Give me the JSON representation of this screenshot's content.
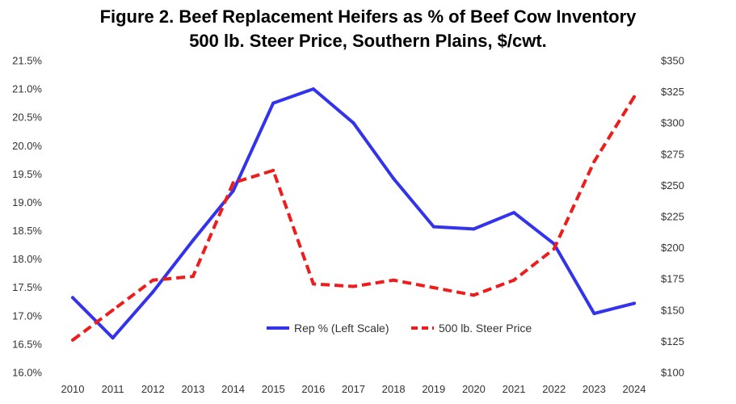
{
  "chart_data": {
    "type": "line",
    "title": "Figure 2. Beef Replacement Heifers as % of Beef Cow Inventory",
    "subtitle": "500 lb. Steer Price, Southern Plains, $/cwt.",
    "categories": [
      "2010",
      "2011",
      "2012",
      "2013",
      "2014",
      "2015",
      "2016",
      "2017",
      "2018",
      "2019",
      "2020",
      "2021",
      "2022",
      "2023",
      "2024"
    ],
    "series": [
      {
        "name": "Rep % (Left Scale)",
        "axis": "left",
        "color": "#3333ee",
        "dash": "solid",
        "values": [
          17.32,
          16.61,
          17.42,
          18.33,
          19.2,
          20.75,
          21.0,
          20.4,
          19.42,
          18.57,
          18.53,
          18.82,
          18.27,
          17.04,
          17.22
        ]
      },
      {
        "name": "500 lb. Steer Price",
        "axis": "right",
        "color": "#ee1c1c",
        "dash": "dashed",
        "values": [
          126,
          150,
          174,
          177,
          252,
          262,
          171,
          169,
          174,
          168,
          162,
          174,
          199,
          269,
          321
        ]
      }
    ],
    "left_axis": {
      "min": 16.0,
      "max": 21.5,
      "ticks": [
        "16.0%",
        "16.5%",
        "17.0%",
        "17.5%",
        "18.0%",
        "18.5%",
        "19.0%",
        "19.5%",
        "20.0%",
        "20.5%",
        "21.0%",
        "21.5%"
      ]
    },
    "right_axis": {
      "min": 100,
      "max": 350,
      "ticks": [
        "$100",
        "$125",
        "$150",
        "$175",
        "$200",
        "$225",
        "$250",
        "$275",
        "$300",
        "$325",
        "$350"
      ]
    },
    "legend_position": "lower-center",
    "grid": false
  }
}
